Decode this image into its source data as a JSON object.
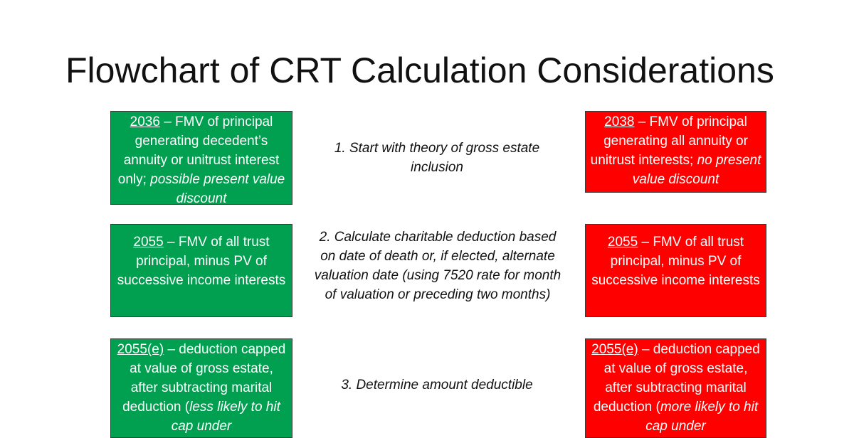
{
  "title": "Flowchart of CRT Calculation Considerations",
  "rows": [
    {
      "step": "1. Start with theory of gross estate inclusion",
      "left": {
        "code": "2036",
        "text": " – FMV of principal generating decedent’s annuity or unitrust interest only; ",
        "em": "possible present value discount",
        "tail": ""
      },
      "right": {
        "code": "2038",
        "text": " – FMV of principal generating all annuity or unitrust interests; ",
        "em": "no present value discount",
        "tail": ""
      }
    },
    {
      "step": "2. Calculate charitable deduction based on date of death or, if elected, alternate valuation date (using 7520 rate for month of valuation or preceding two months)",
      "left": {
        "code": "2055",
        "text": " – FMV of all trust principal, minus PV of successive income interests",
        "em": "",
        "tail": ""
      },
      "right": {
        "code": "2055",
        "text": " – FMV of all trust principal, minus PV of successive income interests",
        "em": "",
        "tail": ""
      }
    },
    {
      "step": "3. Determine amount deductible",
      "left": {
        "code": "2055(e)",
        "text": " – deduction capped at value of gross estate, after subtracting marital deduction (",
        "em": "less likely to hit cap under",
        "tail": ""
      },
      "right": {
        "code": "2055(e)",
        "text": " – deduction capped at value of gross estate, after subtracting marital deduction (",
        "em": "more likely to hit cap under",
        "tail": ""
      }
    }
  ]
}
